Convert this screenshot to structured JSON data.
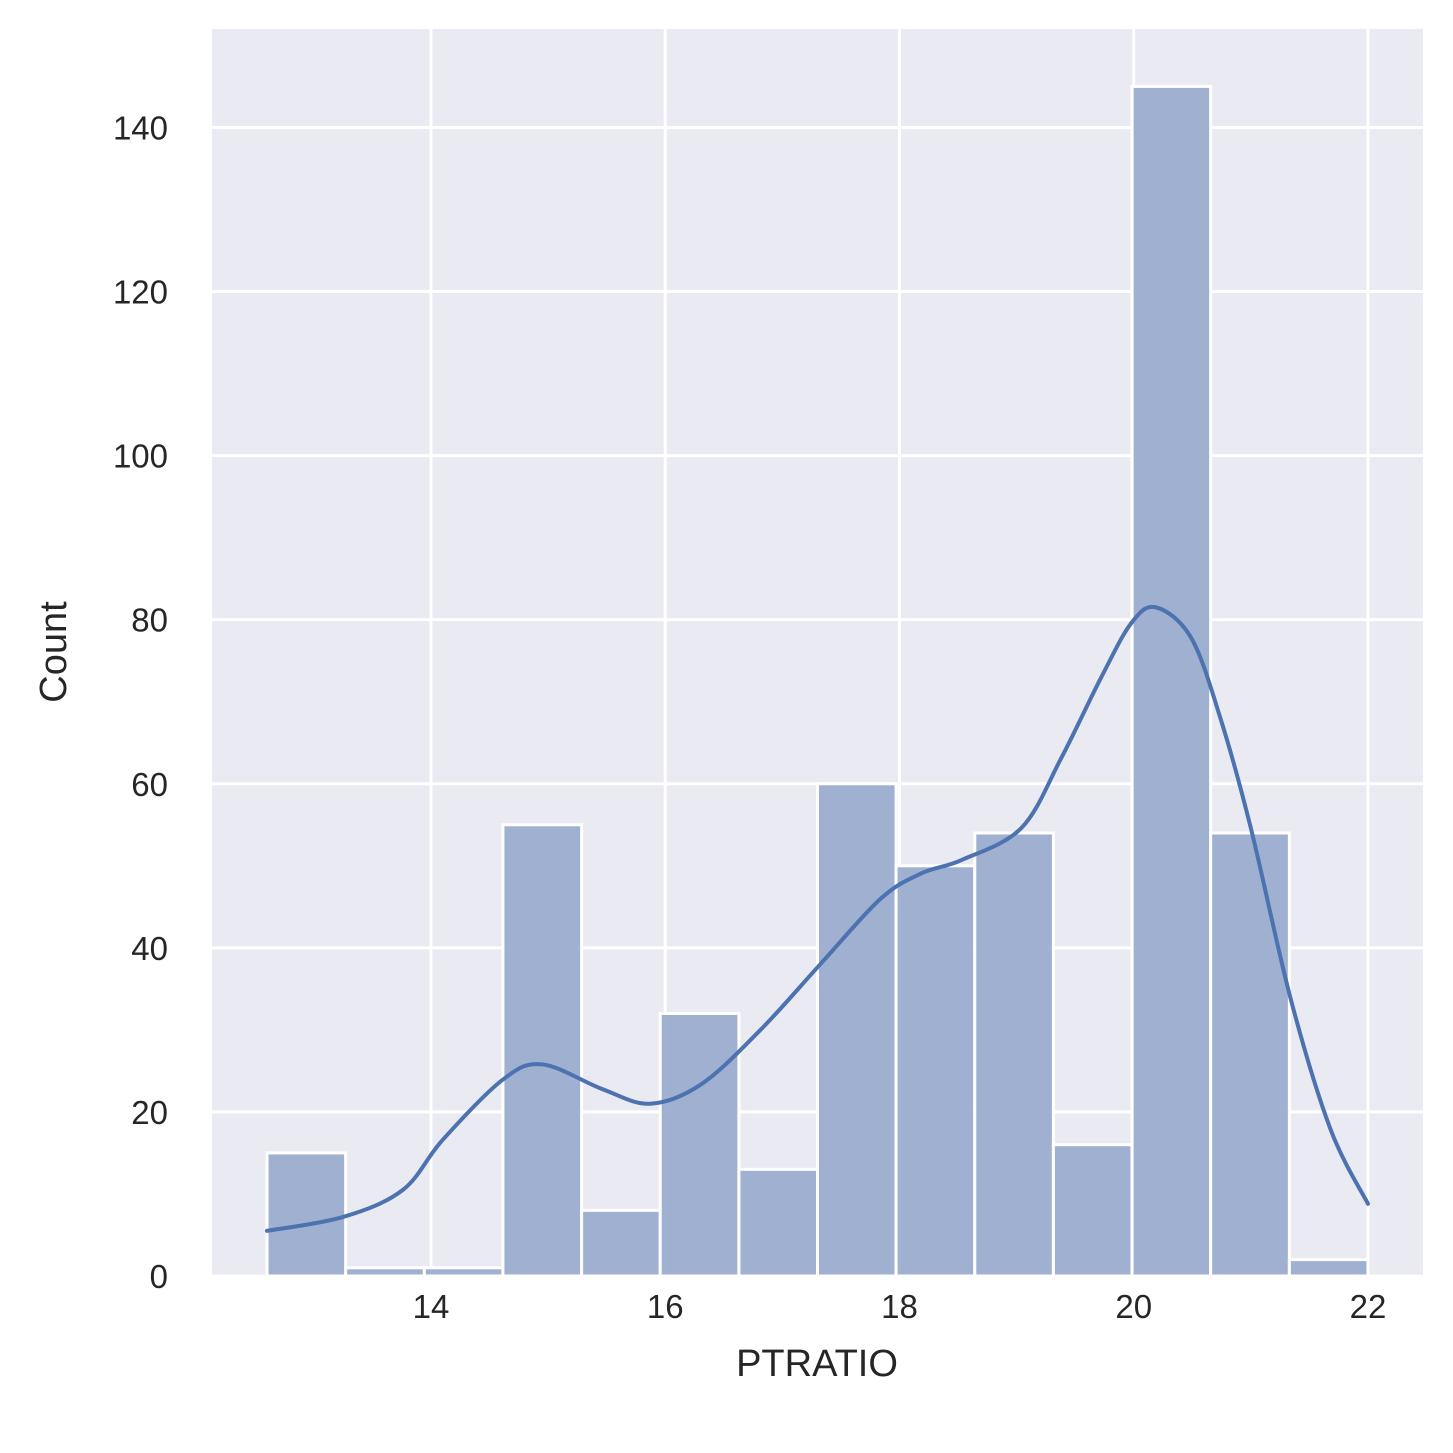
{
  "chart_data": {
    "type": "bar",
    "subtype": "histogram_with_kde",
    "title": "",
    "xlabel": "PTRATIO",
    "ylabel": "Count",
    "xlim": [
      12.13,
      22.47
    ],
    "ylim": [
      0,
      152
    ],
    "grid": true,
    "legend": null,
    "x_ticks": [
      14,
      16,
      18,
      20,
      22
    ],
    "y_ticks": [
      0,
      20,
      40,
      60,
      80,
      100,
      120,
      140
    ],
    "bin_edges": [
      12.6,
      13.271,
      13.943,
      14.614,
      15.286,
      15.957,
      16.629,
      17.3,
      17.971,
      18.643,
      19.314,
      19.986,
      20.657,
      21.329,
      22.0
    ],
    "categories": [
      "12.6-13.3",
      "13.3-13.9",
      "13.9-14.6",
      "14.6-15.3",
      "15.3-16.0",
      "16.0-16.6",
      "16.6-17.3",
      "17.3-18.0",
      "18.0-18.6",
      "18.6-19.3",
      "19.3-20.0",
      "20.0-20.7",
      "20.7-21.3",
      "21.3-22.0"
    ],
    "values": [
      15,
      1,
      1,
      55,
      8,
      32,
      13,
      60,
      50,
      54,
      16,
      145,
      54,
      2
    ],
    "kde": {
      "x": [
        12.6,
        13.25,
        13.76,
        14.1,
        14.61,
        14.95,
        15.46,
        15.87,
        16.31,
        16.82,
        17.33,
        17.84,
        18.19,
        18.53,
        19.04,
        19.38,
        19.72,
        19.98,
        20.19,
        20.49,
        20.74,
        21.0,
        21.34,
        21.68,
        22.0
      ],
      "y": [
        5.5,
        7.2,
        10.5,
        16.6,
        23.9,
        25.8,
        22.8,
        21.0,
        23.4,
        30.1,
        38.1,
        46.0,
        49.1,
        50.7,
        54.6,
        63.1,
        72.9,
        79.6,
        81.5,
        77.8,
        68.0,
        54.6,
        33.8,
        17.9,
        8.8
      ]
    },
    "colors": {
      "bar_fill": "#9badcf",
      "bar_edge": "#ffffff",
      "kde_line": "#4c72b0",
      "plot_background": "#eaeaf2",
      "grid": "#ffffff"
    }
  }
}
